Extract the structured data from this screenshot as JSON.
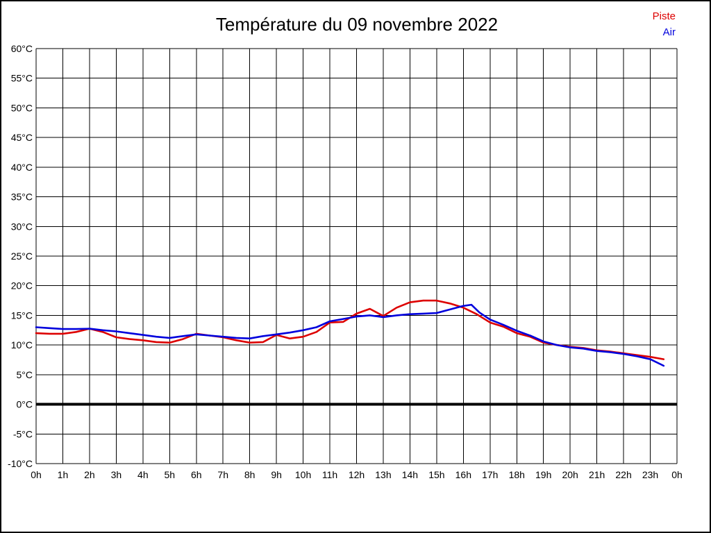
{
  "header": {
    "title": "Température du 09 novembre 2022"
  },
  "legend": {
    "items": [
      {
        "label": "Piste",
        "color": "#dd0000"
      },
      {
        "label": "Air",
        "color": "#0000dd"
      }
    ]
  },
  "chart_data": {
    "type": "line",
    "title": "Température du 09 novembre 2022",
    "xlabel": "",
    "ylabel": "",
    "x_unit": "hours",
    "xlim": [
      0,
      24
    ],
    "ylim": [
      -10,
      60
    ],
    "grid": true,
    "grid_color": "#000000",
    "zero_line": {
      "value": 0,
      "color": "#000000",
      "width": 4
    },
    "legend_position": "top-right",
    "x_tick_values": [
      0,
      1,
      2,
      3,
      4,
      5,
      6,
      7,
      8,
      9,
      10,
      11,
      12,
      13,
      14,
      15,
      16,
      17,
      18,
      19,
      20,
      21,
      22,
      23,
      24
    ],
    "x_tick_labels": [
      "0h",
      "1h",
      "2h",
      "3h",
      "4h",
      "5h",
      "6h",
      "7h",
      "8h",
      "9h",
      "10h",
      "11h",
      "12h",
      "13h",
      "14h",
      "15h",
      "16h",
      "17h",
      "18h",
      "19h",
      "20h",
      "21h",
      "22h",
      "23h",
      "0h"
    ],
    "y_tick_values": [
      60,
      55,
      50,
      45,
      40,
      35,
      30,
      25,
      20,
      15,
      10,
      5,
      0,
      -5,
      -10
    ],
    "y_tick_labels": [
      "60°C",
      "55°C",
      "50°C",
      "45°C",
      "40°C",
      "35°C",
      "30°C",
      "25°C",
      "20°C",
      "15°C",
      "10°C",
      "5°C",
      "0°C",
      "-5°C",
      "-10°C"
    ],
    "series": [
      {
        "name": "Piste",
        "color": "#dd0000",
        "points": [
          [
            0,
            12.0
          ],
          [
            0.5,
            11.9
          ],
          [
            1,
            11.9
          ],
          [
            1.5,
            12.2
          ],
          [
            2,
            12.75
          ],
          [
            2.5,
            12.2
          ],
          [
            3,
            11.3
          ],
          [
            3.5,
            11.0
          ],
          [
            4,
            10.8
          ],
          [
            4.5,
            10.5
          ],
          [
            5,
            10.4
          ],
          [
            5.5,
            11.0
          ],
          [
            6,
            11.9
          ],
          [
            6.5,
            11.6
          ],
          [
            7,
            11.3
          ],
          [
            7.5,
            10.8
          ],
          [
            8,
            10.4
          ],
          [
            8.5,
            10.5
          ],
          [
            9,
            11.7
          ],
          [
            9.5,
            11.1
          ],
          [
            10,
            11.4
          ],
          [
            10.5,
            12.2
          ],
          [
            11,
            13.8
          ],
          [
            11.5,
            13.9
          ],
          [
            12,
            15.3
          ],
          [
            12.5,
            16.1
          ],
          [
            13,
            14.9
          ],
          [
            13.5,
            16.3
          ],
          [
            14,
            17.2
          ],
          [
            14.5,
            17.5
          ],
          [
            15,
            17.5
          ],
          [
            15.5,
            17.0
          ],
          [
            16,
            16.3
          ],
          [
            16.5,
            15.2
          ],
          [
            17,
            13.8
          ],
          [
            17.5,
            13.1
          ],
          [
            18,
            12.0
          ],
          [
            18.5,
            11.4
          ],
          [
            19,
            10.4
          ],
          [
            19.5,
            10.0
          ],
          [
            20,
            9.7
          ],
          [
            20.5,
            9.5
          ],
          [
            21,
            9.1
          ],
          [
            21.5,
            8.9
          ],
          [
            22,
            8.6
          ],
          [
            22.5,
            8.3
          ],
          [
            23,
            8.0
          ],
          [
            23.5,
            7.6
          ]
        ]
      },
      {
        "name": "Air",
        "color": "#0000dd",
        "points": [
          [
            0,
            13.0
          ],
          [
            0.5,
            12.85
          ],
          [
            1,
            12.7
          ],
          [
            1.5,
            12.7
          ],
          [
            2,
            12.75
          ],
          [
            2.5,
            12.5
          ],
          [
            3,
            12.3
          ],
          [
            3.5,
            12.0
          ],
          [
            4,
            11.7
          ],
          [
            4.5,
            11.4
          ],
          [
            5,
            11.2
          ],
          [
            5.5,
            11.5
          ],
          [
            6,
            11.8
          ],
          [
            6.5,
            11.6
          ],
          [
            7,
            11.4
          ],
          [
            7.5,
            11.2
          ],
          [
            8,
            11.1
          ],
          [
            8.5,
            11.5
          ],
          [
            9,
            11.8
          ],
          [
            9.5,
            12.1
          ],
          [
            10,
            12.5
          ],
          [
            10.5,
            13.0
          ],
          [
            11,
            14.0
          ],
          [
            11.5,
            14.4
          ],
          [
            12,
            14.8
          ],
          [
            12.5,
            15.0
          ],
          [
            13,
            14.7
          ],
          [
            13.5,
            15.0
          ],
          [
            14,
            15.2
          ],
          [
            14.5,
            15.3
          ],
          [
            15,
            15.4
          ],
          [
            15.5,
            16.0
          ],
          [
            16,
            16.6
          ],
          [
            16.3,
            16.8
          ],
          [
            16.6,
            15.5
          ],
          [
            17,
            14.3
          ],
          [
            17.5,
            13.4
          ],
          [
            18,
            12.4
          ],
          [
            18.5,
            11.6
          ],
          [
            19,
            10.6
          ],
          [
            19.5,
            10.0
          ],
          [
            20,
            9.6
          ],
          [
            20.5,
            9.4
          ],
          [
            21,
            9.0
          ],
          [
            21.5,
            8.8
          ],
          [
            22,
            8.5
          ],
          [
            22.5,
            8.1
          ],
          [
            23,
            7.6
          ],
          [
            23.5,
            6.5
          ]
        ]
      }
    ]
  }
}
